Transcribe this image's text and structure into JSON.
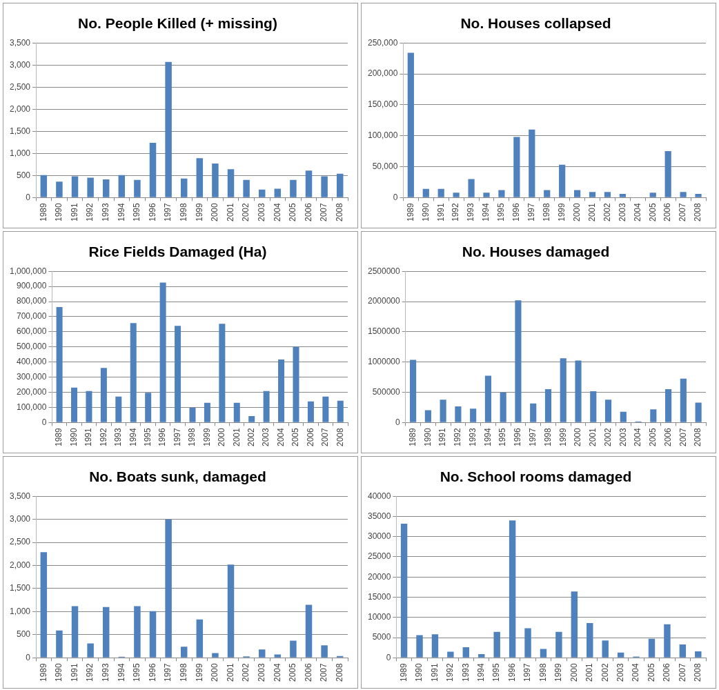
{
  "chart_data": [
    {
      "type": "bar",
      "title": "No. People Killed (+ missing)",
      "categories": [
        "1989",
        "1990",
        "1991",
        "1992",
        "1993",
        "1994",
        "1995",
        "1996",
        "1997",
        "1998",
        "1999",
        "2000",
        "2001",
        "2002",
        "2003",
        "2004",
        "2005",
        "2006",
        "2007",
        "2008"
      ],
      "values": [
        510,
        360,
        480,
        450,
        410,
        510,
        400,
        1240,
        3070,
        430,
        890,
        770,
        640,
        400,
        180,
        200,
        400,
        610,
        480,
        540
      ],
      "color": "#4f81bd",
      "ylim": [
        0,
        3500
      ],
      "yticks": [
        0,
        {
          "value": 500,
          "label": "500"
        },
        {
          "value": 1000,
          "label": "1,000"
        },
        {
          "value": 1500,
          "label": "1,500"
        },
        {
          "value": 2000,
          "label": "2,000"
        },
        {
          "value": 2500,
          "label": "2,500"
        },
        {
          "value": 3000,
          "label": "3,000"
        },
        {
          "value": 3500,
          "label": "3,500"
        }
      ],
      "grid": "y"
    },
    {
      "type": "bar",
      "title": "No. Houses collapsed",
      "categories": [
        "1989",
        "1990",
        "1991",
        "1992",
        "1993",
        "1994",
        "1995",
        "1996",
        "1997",
        "1998",
        "1999",
        "2000",
        "2001",
        "2002",
        "2003",
        "2004",
        "2005",
        "2006",
        "2007",
        "2008"
      ],
      "values": [
        234000,
        14000,
        14000,
        8000,
        30000,
        8000,
        12000,
        98000,
        110000,
        12000,
        53000,
        12000,
        9000,
        9000,
        6000,
        0,
        8000,
        75000,
        9000,
        6000
      ],
      "color": "#4f81bd",
      "ylim": [
        0,
        250000
      ],
      "yticks": [
        0,
        {
          "value": 50000,
          "label": "50,000"
        },
        {
          "value": 100000,
          "label": "100,000"
        },
        {
          "value": 150000,
          "label": "150,000"
        },
        {
          "value": 200000,
          "label": "200,000"
        },
        {
          "value": 250000,
          "label": "250,000"
        }
      ],
      "grid": "y"
    },
    {
      "type": "bar",
      "title": "Rice Fields Damaged (Ha)",
      "categories": [
        "1989",
        "1990",
        "1991",
        "1992",
        "1993",
        "1994",
        "1995",
        "1996",
        "1997",
        "1998",
        "1999",
        "2000",
        "2001",
        "2002",
        "2003",
        "2004",
        "2005",
        "2006",
        "2007",
        "2008"
      ],
      "values": [
        764000,
        231000,
        208000,
        361000,
        171000,
        657000,
        196000,
        926000,
        639000,
        97000,
        130000,
        653000,
        130000,
        42000,
        208000,
        417000,
        500000,
        139000,
        171000,
        144000
      ],
      "color": "#4f81bd",
      "ylim": [
        0,
        1000000
      ],
      "yticks": [
        0,
        {
          "value": 100000,
          "label": "100,000"
        },
        {
          "value": 200000,
          "label": "200,000"
        },
        {
          "value": 300000,
          "label": "300,000"
        },
        {
          "value": 400000,
          "label": "400,000"
        },
        {
          "value": 500000,
          "label": "500,000"
        },
        {
          "value": 600000,
          "label": "600,000"
        },
        {
          "value": 700000,
          "label": "700,000"
        },
        {
          "value": 800000,
          "label": "800,000"
        },
        {
          "value": 900000,
          "label": "900,000"
        },
        {
          "value": 1000000,
          "label": "1,000,000"
        }
      ],
      "grid": "y"
    },
    {
      "type": "bar",
      "title": "No. Houses damaged",
      "categories": [
        "1989",
        "1990",
        "1991",
        "1992",
        "1993",
        "1994",
        "1995",
        "1996",
        "1997",
        "1998",
        "1999",
        "2000",
        "2001",
        "2002",
        "2003",
        "2004",
        "2005",
        "2006",
        "2007",
        "2008"
      ],
      "values": [
        1036000,
        203000,
        377000,
        265000,
        228000,
        775000,
        498000,
        2019000,
        315000,
        551000,
        1061000,
        1024000,
        518000,
        377000,
        178000,
        17000,
        216000,
        551000,
        726000,
        328000
      ],
      "color": "#4f81bd",
      "ylim": [
        0,
        2500000
      ],
      "yticks": [
        0,
        500000,
        1000000,
        1500000,
        2000000,
        2500000
      ],
      "grid": "y"
    },
    {
      "type": "bar",
      "title": "No. Boats sunk, damaged",
      "categories": [
        "1989",
        "1990",
        "1991",
        "1992",
        "1993",
        "1994",
        "1995",
        "1996",
        "1997",
        "1998",
        "1999",
        "2000",
        "2001",
        "2002",
        "2003",
        "2004",
        "2005",
        "2006",
        "2007",
        "2008"
      ],
      "values": [
        2290,
        590,
        1120,
        310,
        1100,
        25,
        1120,
        1010,
        3000,
        240,
        830,
        100,
        2020,
        30,
        180,
        70,
        370,
        1150,
        270,
        40
      ],
      "color": "#4f81bd",
      "ylim": [
        0,
        3500
      ],
      "yticks": [
        0,
        {
          "value": 500,
          "label": "500"
        },
        {
          "value": 1000,
          "label": "1,000"
        },
        {
          "value": 1500,
          "label": "1,500"
        },
        {
          "value": 2000,
          "label": "2,000"
        },
        {
          "value": 2500,
          "label": "2,500"
        },
        {
          "value": 3000,
          "label": "3,000"
        },
        {
          "value": 3500,
          "label": "3,500"
        }
      ],
      "grid": "y"
    },
    {
      "type": "bar",
      "title": "No. School rooms damaged",
      "categories": [
        "1989",
        "1990",
        "1991",
        "1992",
        "1993",
        "1994",
        "1995",
        "1996",
        "1997",
        "1998",
        "1999",
        "2000",
        "2001",
        "2002",
        "2003",
        "2004",
        "2005",
        "2006",
        "2007",
        "2008"
      ],
      "values": [
        33200,
        5600,
        5800,
        1500,
        2600,
        900,
        6400,
        34000,
        7300,
        2200,
        6400,
        16400,
        8600,
        4300,
        1300,
        300,
        4700,
        8300,
        3300,
        1600
      ],
      "color": "#4f81bd",
      "ylim": [
        0,
        40000
      ],
      "yticks": [
        0,
        5000,
        10000,
        15000,
        20000,
        25000,
        30000,
        35000,
        40000
      ],
      "grid": "y"
    }
  ]
}
